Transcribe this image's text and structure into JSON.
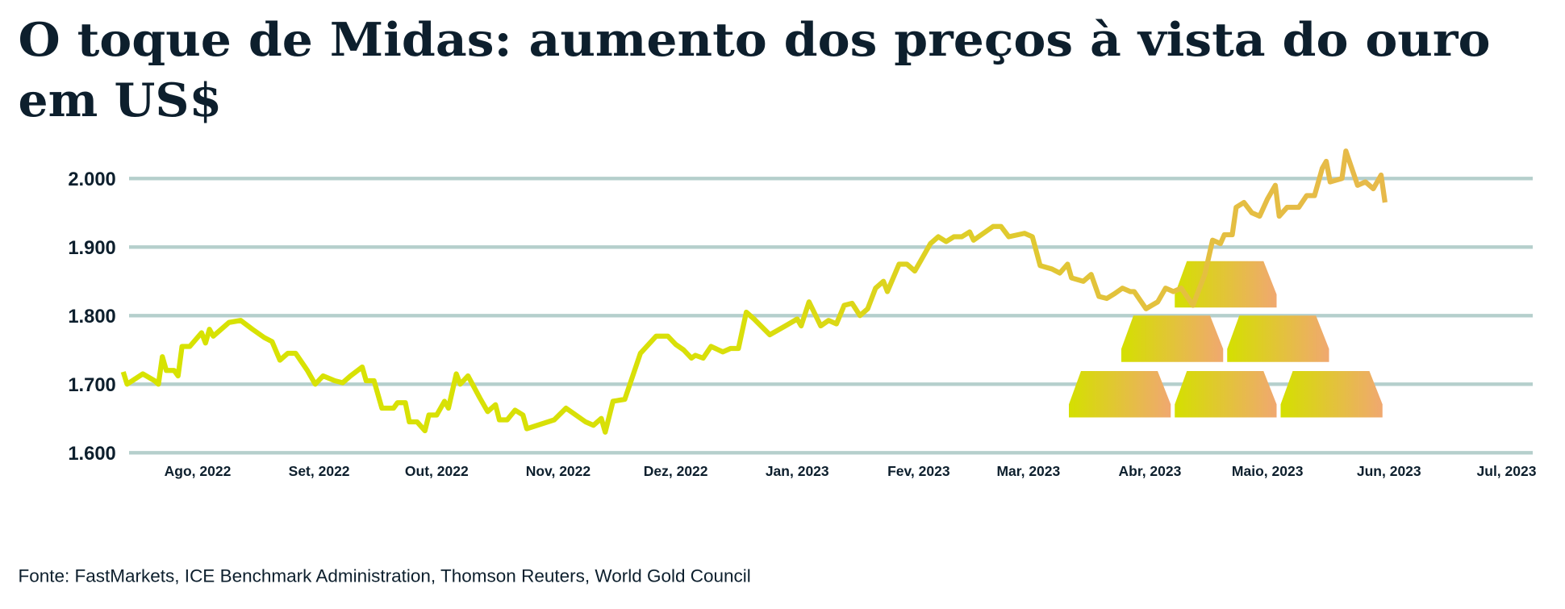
{
  "title_line1": "O toque de Midas: aumento dos preços à vista do ouro",
  "title_line2": "em US$",
  "source": "Fonte: FastMarkets, ICE Benchmark Administration, Thomson Reuters, World Gold Council",
  "colors": {
    "line_start": "#d7e300",
    "line_end": "#e8b84e",
    "grid": "#b5cfcc",
    "text": "#0d1f2d",
    "bar_start": "#d4e000",
    "bar_end": "#f0a870"
  },
  "decoration": {
    "icon": "gold-bars-stack-icon",
    "bars": 6
  },
  "chart_data": {
    "type": "line",
    "title": "O toque de Midas: aumento dos preços à vista do ouro em US$",
    "xlabel": "",
    "ylabel": "",
    "ylim": [
      1600,
      2000
    ],
    "yticks": [
      1600,
      1700,
      1800,
      1900,
      2000
    ],
    "ytick_labels": [
      "1.600",
      "1.700",
      "1.800",
      "1.900",
      "2.000"
    ],
    "grid": "horizontal",
    "xticks": [
      "2022-08-01",
      "2022-09-01",
      "2022-10-01",
      "2022-11-01",
      "2022-12-01",
      "2023-01-01",
      "2023-02-01",
      "2023-03-01",
      "2023-04-01",
      "2023-05-01",
      "2023-06-01",
      "2023-07-01"
    ],
    "xtick_labels": [
      "Ago, 2022",
      "Set, 2022",
      "Out, 2022",
      "Nov, 2022",
      "Dez, 2022",
      "Jan, 2023",
      "Fev, 2023",
      "Mar, 2023",
      "Abr, 2023",
      "Maio, 2023",
      "Jun, 2023",
      "Jul, 2023"
    ],
    "series": [
      {
        "points": [
          [
            "2022-07-13",
            1718
          ],
          [
            "2022-07-14",
            1700
          ],
          [
            "2022-07-18",
            1715
          ],
          [
            "2022-07-21",
            1705
          ],
          [
            "2022-07-22",
            1700
          ],
          [
            "2022-07-23",
            1740
          ],
          [
            "2022-07-24",
            1720
          ],
          [
            "2022-07-26",
            1720
          ],
          [
            "2022-07-27",
            1712
          ],
          [
            "2022-07-28",
            1755
          ],
          [
            "2022-07-30",
            1755
          ],
          [
            "2022-08-02",
            1775
          ],
          [
            "2022-08-03",
            1760
          ],
          [
            "2022-08-04",
            1780
          ],
          [
            "2022-08-05",
            1770
          ],
          [
            "2022-08-09",
            1790
          ],
          [
            "2022-08-12",
            1793
          ],
          [
            "2022-08-15",
            1780
          ],
          [
            "2022-08-18",
            1768
          ],
          [
            "2022-08-20",
            1762
          ],
          [
            "2022-08-22",
            1735
          ],
          [
            "2022-08-24",
            1745
          ],
          [
            "2022-08-26",
            1745
          ],
          [
            "2022-08-29",
            1720
          ],
          [
            "2022-08-31",
            1700
          ],
          [
            "2022-09-02",
            1712
          ],
          [
            "2022-09-05",
            1705
          ],
          [
            "2022-09-07",
            1702
          ],
          [
            "2022-09-09",
            1712
          ],
          [
            "2022-09-12",
            1725
          ],
          [
            "2022-09-13",
            1705
          ],
          [
            "2022-09-15",
            1705
          ],
          [
            "2022-09-17",
            1665
          ],
          [
            "2022-09-20",
            1665
          ],
          [
            "2022-09-21",
            1673
          ],
          [
            "2022-09-23",
            1673
          ],
          [
            "2022-09-24",
            1645
          ],
          [
            "2022-09-26",
            1645
          ],
          [
            "2022-09-28",
            1632
          ],
          [
            "2022-09-29",
            1655
          ],
          [
            "2022-10-01",
            1655
          ],
          [
            "2022-10-03",
            1675
          ],
          [
            "2022-10-04",
            1665
          ],
          [
            "2022-10-06",
            1715
          ],
          [
            "2022-10-07",
            1700
          ],
          [
            "2022-10-09",
            1712
          ],
          [
            "2022-10-12",
            1680
          ],
          [
            "2022-10-14",
            1660
          ],
          [
            "2022-10-16",
            1670
          ],
          [
            "2022-10-17",
            1648
          ],
          [
            "2022-10-19",
            1648
          ],
          [
            "2022-10-21",
            1662
          ],
          [
            "2022-10-23",
            1655
          ],
          [
            "2022-10-24",
            1635
          ],
          [
            "2022-10-31",
            1648
          ],
          [
            "2022-11-03",
            1665
          ],
          [
            "2022-11-08",
            1645
          ],
          [
            "2022-11-10",
            1640
          ],
          [
            "2022-11-12",
            1650
          ],
          [
            "2022-11-13",
            1630
          ],
          [
            "2022-11-15",
            1675
          ],
          [
            "2022-11-18",
            1678
          ],
          [
            "2022-11-22",
            1745
          ],
          [
            "2022-11-26",
            1770
          ],
          [
            "2022-11-29",
            1770
          ],
          [
            "2022-12-01",
            1758
          ],
          [
            "2022-12-03",
            1750
          ],
          [
            "2022-12-05",
            1738
          ],
          [
            "2022-12-06",
            1742
          ],
          [
            "2022-12-08",
            1738
          ],
          [
            "2022-12-10",
            1755
          ],
          [
            "2022-12-13",
            1747
          ],
          [
            "2022-12-15",
            1752
          ],
          [
            "2022-12-17",
            1752
          ],
          [
            "2022-12-19",
            1805
          ],
          [
            "2022-12-21",
            1795
          ],
          [
            "2022-12-25",
            1772
          ],
          [
            "2022-12-29",
            1785
          ],
          [
            "2023-01-01",
            1795
          ],
          [
            "2023-01-02",
            1785
          ],
          [
            "2023-01-04",
            1820
          ],
          [
            "2023-01-07",
            1785
          ],
          [
            "2023-01-09",
            1793
          ],
          [
            "2023-01-11",
            1788
          ],
          [
            "2023-01-13",
            1815
          ],
          [
            "2023-01-15",
            1818
          ],
          [
            "2023-01-17",
            1800
          ],
          [
            "2023-01-19",
            1810
          ],
          [
            "2023-01-21",
            1840
          ],
          [
            "2023-01-23",
            1850
          ],
          [
            "2023-01-24",
            1835
          ],
          [
            "2023-01-27",
            1875
          ],
          [
            "2023-01-29",
            1875
          ],
          [
            "2023-01-31",
            1865
          ],
          [
            "2023-02-02",
            1885
          ],
          [
            "2023-02-04",
            1905
          ],
          [
            "2023-02-06",
            1915
          ],
          [
            "2023-02-08",
            1908
          ],
          [
            "2023-02-10",
            1915
          ],
          [
            "2023-02-12",
            1915
          ],
          [
            "2023-02-14",
            1922
          ],
          [
            "2023-02-15",
            1910
          ],
          [
            "2023-02-17",
            1918
          ],
          [
            "2023-02-20",
            1930
          ],
          [
            "2023-02-22",
            1930
          ],
          [
            "2023-02-24",
            1915
          ],
          [
            "2023-02-28",
            1920
          ],
          [
            "2023-03-02",
            1915
          ],
          [
            "2023-03-04",
            1873
          ],
          [
            "2023-03-07",
            1868
          ],
          [
            "2023-03-09",
            1862
          ],
          [
            "2023-03-11",
            1875
          ],
          [
            "2023-03-12",
            1855
          ],
          [
            "2023-03-15",
            1850
          ],
          [
            "2023-03-17",
            1860
          ],
          [
            "2023-03-19",
            1828
          ],
          [
            "2023-03-21",
            1825
          ],
          [
            "2023-03-23",
            1832
          ],
          [
            "2023-03-25",
            1840
          ],
          [
            "2023-03-27",
            1835
          ],
          [
            "2023-03-28",
            1835
          ],
          [
            "2023-03-31",
            1810
          ],
          [
            "2023-04-03",
            1820
          ],
          [
            "2023-04-05",
            1840
          ],
          [
            "2023-04-07",
            1835
          ],
          [
            "2023-04-09",
            1840
          ],
          [
            "2023-04-12",
            1815
          ],
          [
            "2023-04-15",
            1860
          ],
          [
            "2023-04-17",
            1910
          ],
          [
            "2023-04-19",
            1905
          ],
          [
            "2023-04-20",
            1918
          ],
          [
            "2023-04-22",
            1918
          ],
          [
            "2023-04-23",
            1958
          ],
          [
            "2023-04-25",
            1965
          ],
          [
            "2023-04-27",
            1950
          ],
          [
            "2023-04-29",
            1945
          ],
          [
            "2023-05-01",
            1970
          ],
          [
            "2023-05-03",
            1990
          ],
          [
            "2023-05-04",
            1945
          ],
          [
            "2023-05-06",
            1958
          ],
          [
            "2023-05-09",
            1958
          ],
          [
            "2023-05-11",
            1975
          ],
          [
            "2023-05-13",
            1975
          ],
          [
            "2023-05-15",
            2015
          ],
          [
            "2023-05-16",
            2025
          ],
          [
            "2023-05-17",
            1995
          ],
          [
            "2023-05-20",
            2000
          ],
          [
            "2023-05-21",
            2040
          ],
          [
            "2023-05-24",
            1990
          ],
          [
            "2023-05-26",
            1995
          ],
          [
            "2023-05-28",
            1985
          ],
          [
            "2023-05-30",
            2005
          ],
          [
            "2023-05-31",
            1965
          ]
        ]
      }
    ]
  }
}
